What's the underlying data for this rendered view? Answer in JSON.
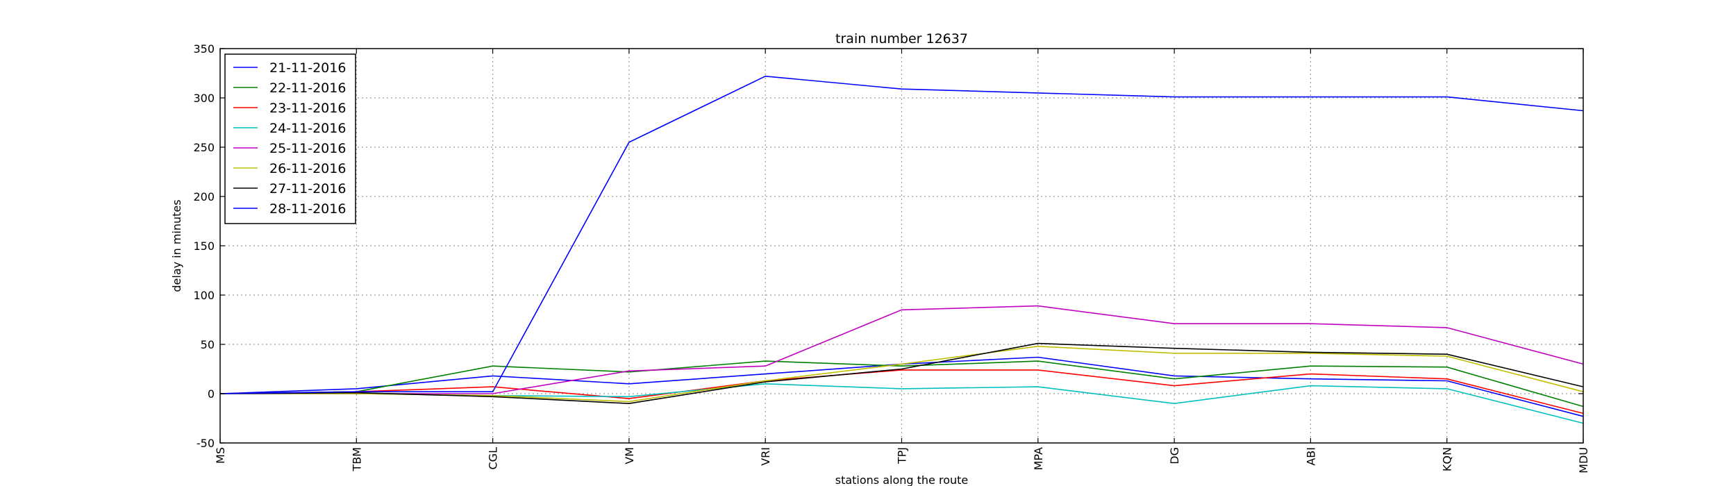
{
  "chart_data": {
    "type": "line",
    "title": "train number 12637",
    "xlabel": "stations along the route",
    "ylabel": "delay in minutes",
    "categories": [
      "MS",
      "TBM",
      "CGL",
      "VM",
      "VRI",
      "TPJ",
      "MPA",
      "DG",
      "ABI",
      "KQN",
      "MDU"
    ],
    "ylim": [
      -50,
      350
    ],
    "yticks": [
      -50,
      0,
      50,
      100,
      150,
      200,
      250,
      300,
      350
    ],
    "grid": true,
    "legend_position": "top-left",
    "series": [
      {
        "name": "21-11-2016",
        "color": "#0000ff",
        "values": [
          0,
          5,
          18,
          10,
          20,
          30,
          37,
          18,
          15,
          13,
          -23
        ]
      },
      {
        "name": "22-11-2016",
        "color": "#008000",
        "values": [
          0,
          2,
          28,
          22,
          33,
          28,
          33,
          15,
          28,
          27,
          -13
        ]
      },
      {
        "name": "23-11-2016",
        "color": "#ff0000",
        "values": [
          0,
          2,
          7,
          -5,
          13,
          24,
          24,
          8,
          20,
          15,
          -20
        ]
      },
      {
        "name": "24-11-2016",
        "color": "#00bfbf",
        "values": [
          0,
          0,
          -2,
          -3,
          10,
          5,
          7,
          -10,
          8,
          5,
          -30
        ]
      },
      {
        "name": "25-11-2016",
        "color": "#bf00bf",
        "values": [
          0,
          0,
          0,
          23,
          28,
          85,
          89,
          71,
          71,
          67,
          30
        ]
      },
      {
        "name": "26-11-2016",
        "color": "#bfbf00",
        "values": [
          0,
          0,
          -2,
          -8,
          13,
          30,
          48,
          41,
          41,
          38,
          2
        ]
      },
      {
        "name": "27-11-2016",
        "color": "#000000",
        "values": [
          0,
          1,
          -3,
          -10,
          12,
          25,
          51,
          46,
          42,
          40,
          7
        ]
      },
      {
        "name": "28-11-2016",
        "color": "#0000ff",
        "values": [
          0,
          2,
          2,
          255,
          322,
          309,
          305,
          301,
          301,
          301,
          287
        ]
      }
    ]
  }
}
